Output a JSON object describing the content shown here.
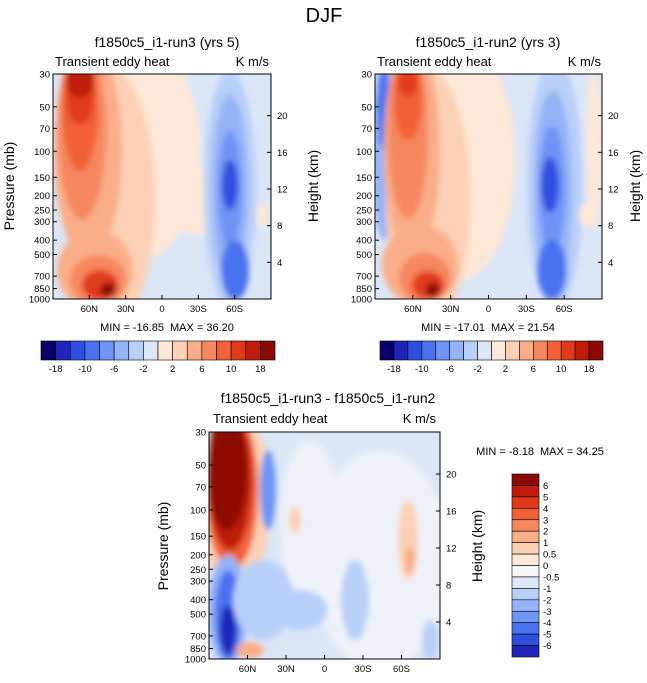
{
  "figure_title": "DJF",
  "chart_data": [
    {
      "type": "heatmap",
      "title": "f1850c5_i1-run3 (yrs 5)",
      "left_label": "Transient eddy heat",
      "right_label": "K m/s",
      "xlabel": "",
      "ylabel": "Pressure (mb)",
      "ylabel_right": "Height (km)",
      "x_ticks": [
        "60N",
        "30N",
        "0",
        "30S",
        "60S"
      ],
      "y_ticks": [
        "30",
        "50",
        "70",
        "100",
        "150",
        "200",
        "250",
        "300",
        "400",
        "500",
        "700",
        "850",
        "1000"
      ],
      "height_ticks": [
        "4",
        "8",
        "12",
        "16",
        "20"
      ],
      "stats": {
        "min_label": "MIN = ",
        "min": "-16.85",
        "max_label": "MAX = ",
        "max": "36.20"
      },
      "colorbar_ticks": [
        "-18",
        "-10",
        "-6",
        "-2",
        "2",
        "6",
        "10",
        "18"
      ]
    },
    {
      "type": "heatmap",
      "title": "f1850c5_i1-run2 (yrs 3)",
      "left_label": "Transient eddy heat",
      "right_label": "K m/s",
      "xlabel": "",
      "ylabel": "Pressure (mb)",
      "ylabel_right": "Height (km)",
      "x_ticks": [
        "60N",
        "30N",
        "0",
        "30S",
        "60S"
      ],
      "y_ticks": [
        "30",
        "50",
        "70",
        "100",
        "150",
        "200",
        "250",
        "300",
        "400",
        "500",
        "700",
        "850",
        "1000"
      ],
      "height_ticks": [
        "4",
        "8",
        "12",
        "16",
        "20"
      ],
      "stats": {
        "min_label": "MIN = ",
        "min": "-17.01",
        "max_label": "MAX = ",
        "max": "21.54"
      },
      "colorbar_ticks": [
        "-18",
        "-10",
        "-6",
        "-2",
        "2",
        "6",
        "10",
        "18"
      ]
    },
    {
      "type": "heatmap",
      "title": "f1850c5_i1-run3 - f1850c5_i1-run2",
      "left_label": "Transient eddy heat",
      "right_label": "K m/s",
      "xlabel": "",
      "ylabel": "Pressure (mb)",
      "ylabel_right": "Height (km)",
      "x_ticks": [
        "60N",
        "30N",
        "0",
        "30S",
        "60S"
      ],
      "y_ticks": [
        "30",
        "50",
        "70",
        "100",
        "150",
        "200",
        "250",
        "300",
        "400",
        "500",
        "700",
        "850",
        "1000"
      ],
      "height_ticks": [
        "4",
        "8",
        "12",
        "16",
        "20"
      ],
      "stats": {
        "min_label": "MIN = ",
        "min": "-8.18",
        "max_label": "MAX = ",
        "max": "34.25"
      },
      "colorbar_ticks": [
        "6",
        "5",
        "4",
        "3",
        "2",
        "1",
        "0.5",
        "0",
        "-0.5",
        "-1",
        "-2",
        "-3",
        "-4",
        "-5",
        "-6"
      ]
    }
  ],
  "colors": {
    "blues": [
      "#08006b",
      "#1f25b8",
      "#2f4fe0",
      "#4a72f0",
      "#6e94f5",
      "#94b4f7",
      "#b8cff8",
      "#dbe6f7"
    ],
    "reds": [
      "#fde7d6",
      "#fcd0b4",
      "#f9ad88",
      "#f6875e",
      "#f16135",
      "#e03a1a",
      "#be1d0d",
      "#8c0a04"
    ],
    "neutral": "#f7f7f7"
  }
}
